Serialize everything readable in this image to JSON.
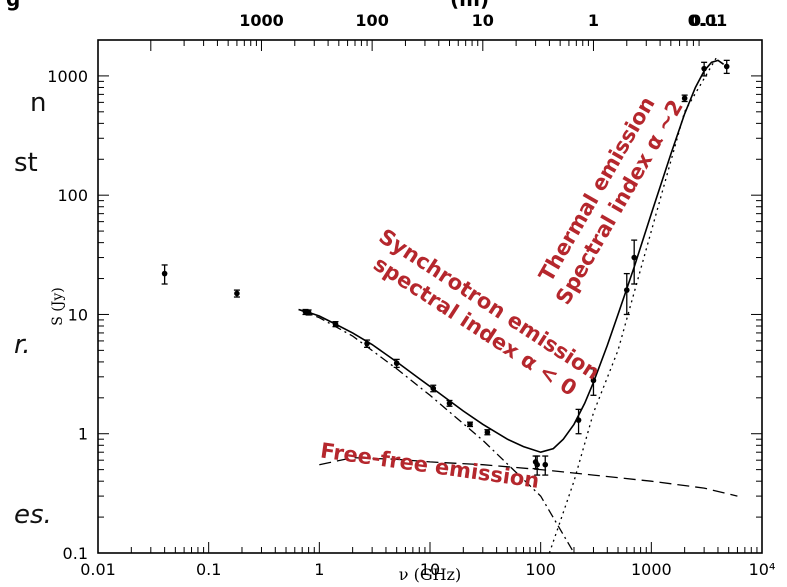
{
  "chart_data": {
    "type": "scatter",
    "xscale": "log",
    "yscale": "log",
    "xlim": [
      0.01,
      10000
    ],
    "ylim": [
      0.1,
      2000
    ],
    "xlabel": "ν (GHz)",
    "ylabel": "S (Jy)",
    "top_axis_label_fragment": "g",
    "top_axis_unit_fragment": "(m)",
    "x_tick_labels": [
      {
        "value": 0.01,
        "label": "0.01"
      },
      {
        "value": 0.1,
        "label": "0.1"
      },
      {
        "value": 1,
        "label": "1"
      },
      {
        "value": 10,
        "label": "10"
      },
      {
        "value": 100,
        "label": "100"
      },
      {
        "value": 1000,
        "label": "1000"
      },
      {
        "value": 10000,
        "label": "10⁴"
      }
    ],
    "y_tick_labels": [
      {
        "value": 0.1,
        "label": "0.1"
      },
      {
        "value": 1,
        "label": "1"
      },
      {
        "value": 10,
        "label": "10"
      },
      {
        "value": 100,
        "label": "100"
      },
      {
        "value": 1000,
        "label": "1000"
      }
    ],
    "top_tick_labels": [
      {
        "freq": 0.3,
        "label": "1000"
      },
      {
        "freq": 3,
        "label": "100"
      },
      {
        "freq": 30,
        "label": "10"
      },
      {
        "freq": 300,
        "label": "1"
      },
      {
        "freq": 3000,
        "label": "0.1"
      }
    ],
    "top_tick_last": {
      "x_frac": 0.918,
      "label": "0.01"
    },
    "points": [
      {
        "x": 0.04,
        "y": 22.0,
        "err": 4
      },
      {
        "x": 0.18,
        "y": 15.0,
        "err": 1
      },
      {
        "x": 0.75,
        "y": 10.5,
        "err": 0.5
      },
      {
        "x": 0.8,
        "y": 10.4,
        "err": 0.5
      },
      {
        "x": 1.4,
        "y": 8.3,
        "err": 0.4
      },
      {
        "x": 2.7,
        "y": 5.7,
        "err": 0.4
      },
      {
        "x": 5.0,
        "y": 3.9,
        "err": 0.3
      },
      {
        "x": 10.7,
        "y": 2.4,
        "err": 0.15
      },
      {
        "x": 15.0,
        "y": 1.8,
        "err": 0.1
      },
      {
        "x": 23.0,
        "y": 1.2,
        "err": 0.05
      },
      {
        "x": 33.0,
        "y": 1.03,
        "err": 0.05
      },
      {
        "x": 90.0,
        "y": 0.58,
        "err": 0.07
      },
      {
        "x": 93.0,
        "y": 0.55,
        "err": 0.1
      },
      {
        "x": 110.0,
        "y": 0.55,
        "err": 0.1
      },
      {
        "x": 220.0,
        "y": 1.3,
        "err": 0.3
      },
      {
        "x": 300.0,
        "y": 2.8,
        "err": 0.7
      },
      {
        "x": 600.0,
        "y": 16.0,
        "err": 6
      },
      {
        "x": 700.0,
        "y": 30.0,
        "err": 12
      },
      {
        "x": 2000.0,
        "y": 650.0,
        "err": 40
      },
      {
        "x": 3000.0,
        "y": 1150.0,
        "err": 150
      },
      {
        "x": 4800.0,
        "y": 1200.0,
        "err": 150
      }
    ],
    "series": [
      {
        "style": "solid",
        "x": [
          0.65,
          0.8,
          1.0,
          1.4,
          2.0,
          3.0,
          5.0,
          8.0,
          12.0,
          20.0,
          30.0,
          50.0,
          70.0,
          100.0,
          130.0,
          160.0,
          200.0,
          250.0,
          300.0,
          400.0,
          500.0,
          700.0,
          1000.0,
          1500.0,
          2000.0,
          2500.0,
          3000.0,
          3500.0,
          4000.0,
          4500.0
        ],
        "y": [
          11.0,
          10.4,
          9.7,
          8.3,
          7.0,
          5.6,
          4.0,
          2.9,
          2.2,
          1.55,
          1.2,
          0.9,
          0.78,
          0.7,
          0.75,
          0.9,
          1.2,
          1.8,
          2.7,
          5.5,
          10.0,
          25.0,
          70.0,
          220.0,
          480.0,
          800.0,
          1100.0,
          1300.0,
          1350.0,
          1250.0
        ]
      },
      {
        "style": "dashdot",
        "x": [
          0.65,
          1.0,
          2.0,
          5.0,
          10.0,
          30.0,
          100.0,
          200.0
        ],
        "y": [
          11.0,
          9.4,
          6.6,
          3.5,
          2.1,
          0.88,
          0.3,
          0.1
        ]
      },
      {
        "style": "dashed",
        "x": [
          1.0,
          2.0,
          5.0,
          10.0,
          30.0,
          100.0,
          300.0,
          1000.0,
          3000.0,
          6000.0
        ],
        "y": [
          0.55,
          0.63,
          0.61,
          0.58,
          0.55,
          0.5,
          0.45,
          0.4,
          0.35,
          0.3
        ]
      },
      {
        "style": "dotted",
        "x": [
          120.0,
          200.0,
          300.0,
          500.0,
          1000.0,
          2000.0,
          4000.0
        ],
        "y": [
          0.1,
          0.4,
          1.5,
          5.0,
          50.0,
          500.0,
          1500.0
        ]
      }
    ],
    "annotations": [
      {
        "lines": [
          "Synchrotron  emission",
          "spectral index α < 0"
        ],
        "x": 30,
        "y": 10,
        "angle": 33
      },
      {
        "lines": [
          "Thermal emission",
          "Spectral index α ~2"
        ],
        "x": 400,
        "y": 100,
        "angle": -60
      },
      {
        "lines": [
          "Free-free emission"
        ],
        "x": 10,
        "y": 0.55,
        "angle": 8
      }
    ],
    "annotation_color": "#b5272d",
    "left_text": [
      {
        "text": "n",
        "italic": false
      },
      {
        "text": "st",
        "italic": false
      },
      {
        "text": "r.",
        "italic": true
      },
      {
        "text": "es.",
        "italic": true
      }
    ]
  }
}
